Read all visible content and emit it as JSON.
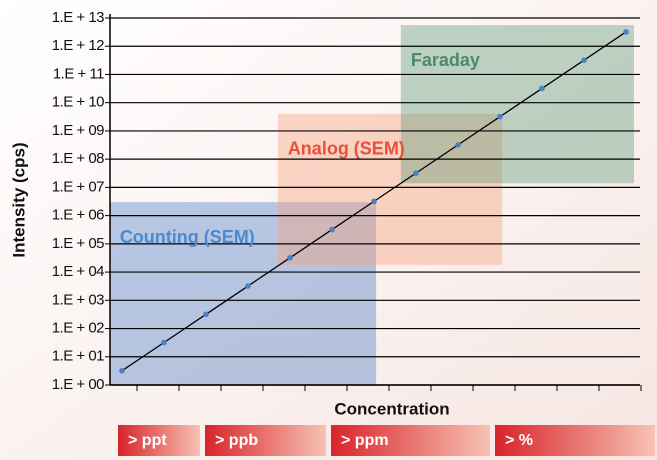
{
  "chart_data": {
    "type": "line",
    "y_label": "Intensity (cps)",
    "x_label": "Concentration",
    "log_scale_y": true,
    "grid": true,
    "categories": [
      null,
      null,
      null,
      null,
      null,
      null,
      null,
      null,
      null,
      null,
      null,
      null,
      null
    ],
    "values": [
      3.2,
      32,
      320,
      3200,
      32000,
      320000,
      3200000,
      32000000,
      320000000,
      3200000000,
      32000000000,
      320000000000,
      3200000000000
    ],
    "color": "#4a7fc0",
    "line_color": "#000000",
    "ylim": [
      1,
      10000000000000
    ],
    "yticks": [
      {
        "value": 1,
        "label": "1.E + 00"
      },
      {
        "value": 10,
        "label": "1.E + 01"
      },
      {
        "value": 100,
        "label": "1.E + 02"
      },
      {
        "value": 1000,
        "label": "1.E + 03"
      },
      {
        "value": 10000,
        "label": "1.E + 04"
      },
      {
        "value": 100000,
        "label": "1.E + 05"
      },
      {
        "value": 1000000,
        "label": "1.E + 06"
      },
      {
        "value": 10000000,
        "label": "1.E + 07"
      },
      {
        "value": 100000000,
        "label": "1.E + 08"
      },
      {
        "value": 1000000000,
        "label": "1.E + 09"
      },
      {
        "value": 10000000000,
        "label": "1.E + 10"
      },
      {
        "value": 100000000000,
        "label": "1.E + 11"
      },
      {
        "value": 1000000000000,
        "label": "1.E + 12"
      },
      {
        "value": 10000000000000,
        "label": "1.E + 13"
      }
    ],
    "regions": [
      {
        "label": "Counting (SEM)",
        "color": "#4f7fc8",
        "label_color": "#4a8ad0",
        "x_range": [
          -0.29,
          6.05
        ],
        "y_range": [
          1,
          3000000
        ]
      },
      {
        "label": "Analog (SEM)",
        "color": "#f7a07a",
        "label_color": "#e8503a",
        "x_range": [
          3.71,
          9.05
        ],
        "y_range": [
          18000,
          4000000000
        ]
      },
      {
        "label": "Faraday",
        "color": "#5f9a78",
        "label_color": "#4a8a6a",
        "x_range": [
          6.64,
          12.19
        ],
        "y_range": [
          14000000,
          5600000000000
        ]
      }
    ],
    "concentration_ranges": [
      "> ppt",
      "> ppb",
      "> ppm",
      "> %"
    ]
  }
}
